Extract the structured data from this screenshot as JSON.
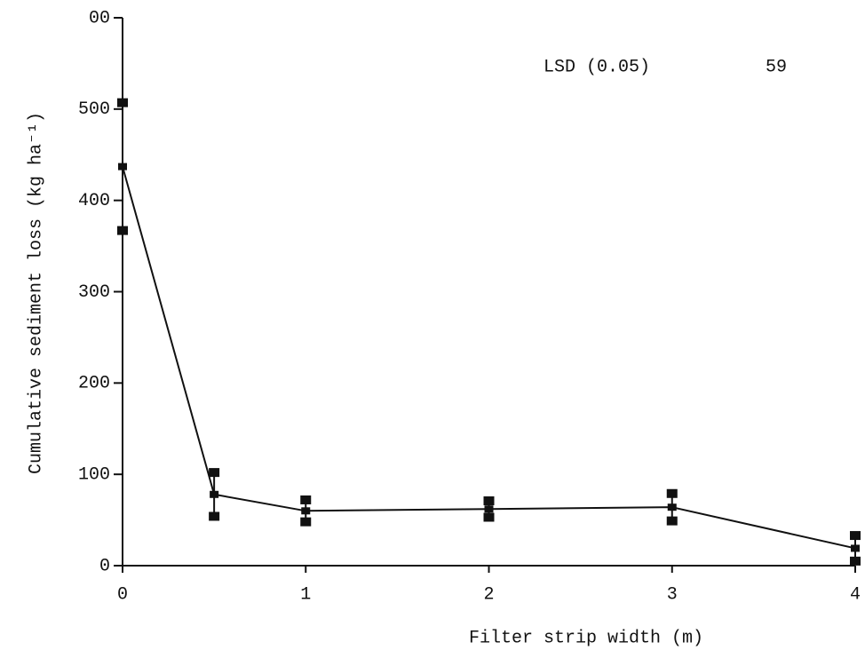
{
  "chart_data": {
    "type": "line",
    "x_label": "Filter strip width (m)",
    "y_label": "Cumulative sediment loss (kg ha⁻¹)",
    "annotation": {
      "label": "LSD (0.05)",
      "value": 59
    },
    "x": [
      0,
      0.5,
      1,
      2,
      3,
      4
    ],
    "values": [
      437,
      78,
      60,
      62,
      64,
      19
    ],
    "errors": [
      70,
      24,
      12,
      9,
      15,
      14
    ],
    "color": "#111111",
    "xlim": [
      0,
      4
    ],
    "xticks": [
      0,
      1,
      2,
      3,
      4
    ],
    "ylim": [
      0,
      600
    ],
    "yticks": [
      0,
      100,
      200,
      300,
      400,
      500,
      {
        "value": 600,
        "label": "00"
      }
    ],
    "grid": false
  }
}
